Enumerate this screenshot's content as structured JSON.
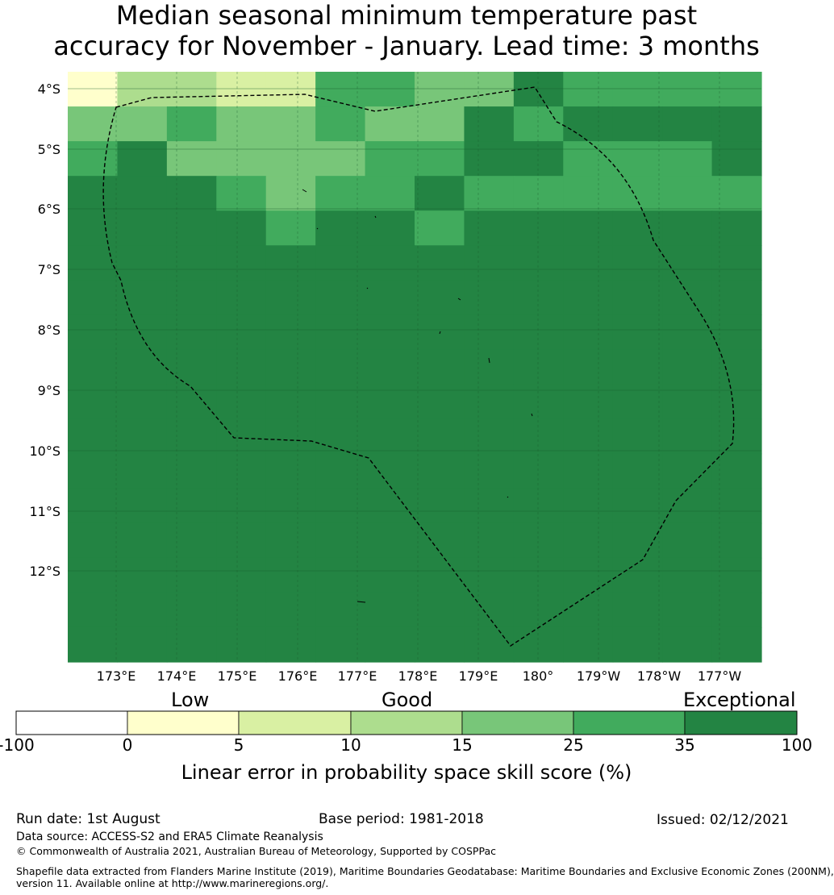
{
  "title": {
    "line1": "Median seasonal minimum temperature past",
    "line2": "accuracy for November - January. Lead time: 3 months"
  },
  "map": {
    "lat_labels": [
      "4°S",
      "5°S",
      "6°S",
      "7°S",
      "8°S",
      "9°S",
      "10°S",
      "11°S",
      "12°S"
    ],
    "lon_labels": [
      "173°E",
      "174°E",
      "175°E",
      "176°E",
      "177°E",
      "178°E",
      "179°E",
      "180°",
      "179°W",
      "178°W",
      "177°W"
    ],
    "grid_rows": [
      [
        1,
        3,
        3,
        2,
        2,
        5,
        5,
        4,
        4,
        6,
        5,
        5,
        5,
        5
      ],
      [
        4,
        4,
        5,
        4,
        4,
        5,
        4,
        4,
        6,
        5,
        6,
        6,
        6,
        6
      ],
      [
        5,
        6,
        4,
        4,
        4,
        4,
        5,
        5,
        6,
        6,
        5,
        5,
        5,
        6
      ],
      [
        6,
        6,
        6,
        5,
        4,
        5,
        5,
        6,
        5,
        5,
        5,
        5,
        5,
        5
      ],
      [
        6,
        6,
        6,
        6,
        5,
        6,
        6,
        5,
        6,
        6,
        6,
        6,
        6,
        6
      ],
      [
        6,
        6,
        6,
        6,
        6,
        6,
        6,
        6,
        6,
        6,
        6,
        6,
        6,
        6
      ],
      [
        6,
        6,
        6,
        6,
        6,
        6,
        6,
        6,
        6,
        6,
        6,
        6,
        6,
        6
      ],
      [
        6,
        6,
        6,
        6,
        6,
        6,
        6,
        6,
        6,
        6,
        6,
        6,
        6,
        6
      ],
      [
        6,
        6,
        6,
        6,
        6,
        6,
        6,
        6,
        6,
        6,
        6,
        6,
        6,
        6
      ],
      [
        6,
        6,
        6,
        6,
        6,
        6,
        6,
        6,
        6,
        6,
        6,
        6,
        6,
        6
      ],
      [
        6,
        6,
        6,
        6,
        6,
        6,
        6,
        6,
        6,
        6,
        6,
        6,
        6,
        6
      ],
      [
        6,
        6,
        6,
        6,
        6,
        6,
        6,
        6,
        6,
        6,
        6,
        6,
        6,
        6
      ],
      [
        6,
        6,
        6,
        6,
        6,
        6,
        6,
        6,
        6,
        6,
        6,
        6,
        6,
        6
      ],
      [
        6,
        6,
        6,
        6,
        6,
        6,
        6,
        6,
        6,
        6,
        6,
        6,
        6,
        6
      ],
      [
        6,
        6,
        6,
        6,
        6,
        6,
        6,
        6,
        6,
        6,
        6,
        6,
        6,
        6
      ],
      [
        6,
        6,
        6,
        6,
        6,
        6,
        6,
        6,
        6,
        6,
        6,
        6,
        6,
        6
      ],
      [
        6,
        6,
        6,
        6,
        6,
        6,
        6,
        6,
        6,
        6,
        6,
        6,
        6,
        6
      ]
    ]
  },
  "colorbar": {
    "categories": [
      "Low",
      "Good",
      "Exceptional"
    ],
    "ticks": [
      "-100",
      "0",
      "5",
      "10",
      "15",
      "25",
      "35",
      "100"
    ],
    "colors": [
      "#ffffff",
      "#ffffcc",
      "#d9f0a3",
      "#addd8e",
      "#78c679",
      "#41ab5d",
      "#238443"
    ],
    "label": "Linear error in probability space skill score (%)"
  },
  "footer": {
    "run_date": "Run date: 1st August",
    "base_period": "Base period: 1981-2018",
    "issued": "Issued: 02/12/2021",
    "data_source": "Data source: ACCESS-S2 and ERA5 Climate Reanalysis",
    "copyright": "© Commonwealth of Australia 2021, Australian Bureau of Meteorology, Supported by COSPPac",
    "shapefile_line1": "Shapefile data extracted from Flanders Marine Institute (2019), Maritime Boundaries Geodatabase: Maritime Boundaries and Exclusive Economic Zones (200NM),",
    "shapefile_line2": "version 11. Available online at http://www.marineregions.org/."
  }
}
